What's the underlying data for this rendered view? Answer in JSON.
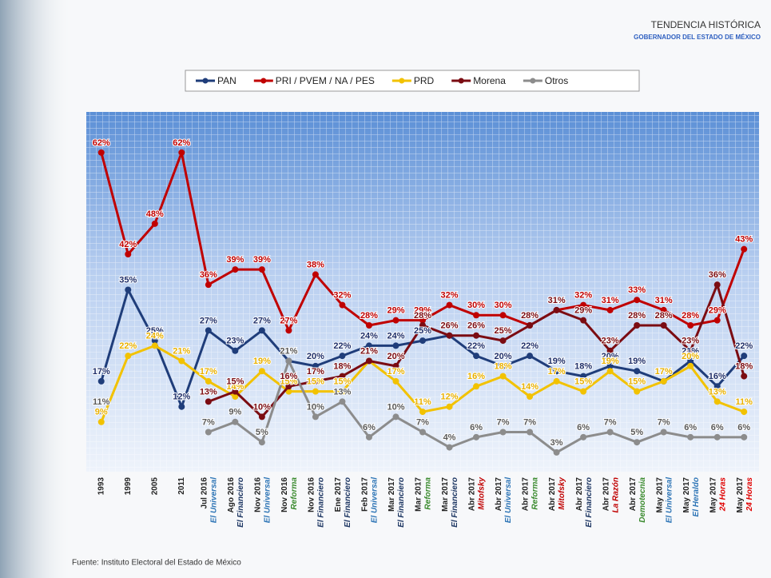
{
  "chart_data": {
    "type": "line",
    "title": "TENDENCIA HISTÓRICA",
    "subtitle": "GOBERNADOR DEL ESTADO DE MÉXICO",
    "source_note": "Fuente: Instituto Electoral del Estado de México",
    "categories": [
      "1993",
      "1999",
      "2005",
      "2011",
      "Jul 2016",
      "Ago 2016",
      "Nov 2016",
      "Nov 2016",
      "Nov 2016",
      "Ene 2017",
      "Feb 2017",
      "Mar 2017",
      "Mar 2017",
      "Mar 2017",
      "Abr 2017",
      "Abr 2017",
      "Abr 2017",
      "Abr 2017",
      "Abr 2017",
      "Abr 2017",
      "Abr 2017",
      "May 2017",
      "May 2017",
      "May 2017",
      "May 2017"
    ],
    "sources": [
      null,
      null,
      null,
      null,
      "El Universal",
      "El Financiero",
      "El Universal",
      "Reforma",
      "El Financiero",
      "El Financiero",
      "El Universal",
      "El Financiero",
      "Reforma",
      "El Financiero",
      "Mitofsky",
      "El Universal",
      "Reforma",
      "Mitofsky",
      "El Financiero",
      "La Razón",
      "Demotecnia",
      "El Universal",
      "El Heraldo",
      "24 Horas",
      "24 Horas"
    ],
    "source_colors": [
      null,
      null,
      null,
      null,
      "#2e75b6",
      "#1f3864",
      "#2e75b6",
      "#3a8a2e",
      "#1f3864",
      "#1f3864",
      "#2e75b6",
      "#1f3864",
      "#3a8a2e",
      "#1f3864",
      "#c00000",
      "#2e75b6",
      "#3a8a2e",
      "#c00000",
      "#1f3864",
      "#c00000",
      "#3a8a2e",
      "#2e75b6",
      "#2e75b6",
      "#e00000",
      "#e00000"
    ],
    "ylim": [
      0,
      70
    ],
    "series": [
      {
        "name": "PAN",
        "color": "#1f3d7a",
        "label_color": "#1f2f6a",
        "values": [
          17,
          35,
          25,
          12,
          27,
          23,
          27,
          21,
          20,
          22,
          24,
          24,
          25,
          26,
          22,
          20,
          22,
          19,
          18,
          20,
          19,
          17,
          21,
          16,
          22
        ],
        "value_labels": [
          "17%",
          "35%",
          "25%",
          "12%",
          "27%",
          "23%",
          "27%",
          "21%",
          "20%",
          "22%",
          "24%",
          "24%",
          "25%",
          "26%",
          "22%",
          "20%",
          "22%",
          "19%",
          "18%",
          "20%",
          "19%",
          "17%",
          "21%",
          "16%",
          "22%"
        ]
      },
      {
        "name": "PRI / PVEM / NA / PES",
        "color": "#c00000",
        "label_color": "#c00000",
        "values": [
          62,
          42,
          48,
          62,
          36,
          39,
          39,
          27,
          38,
          32,
          28,
          29,
          29,
          32,
          30,
          30,
          28,
          31,
          32,
          31,
          33,
          31,
          28,
          29,
          43
        ],
        "value_labels": [
          "62%",
          "42%",
          "48%",
          "62%",
          "36%",
          "39%",
          "39%",
          "27%",
          "38%",
          "32%",
          "28%",
          "29%",
          "29%",
          "32%",
          "30%",
          "30%",
          "28%",
          "31%",
          "32%",
          "31%",
          "33%",
          "31%",
          "28%",
          "29%",
          "43%"
        ]
      },
      {
        "name": "PRD",
        "color": "#f2c200",
        "label_color": "#e8b000",
        "values": [
          9,
          22,
          24,
          21,
          17,
          14,
          19,
          15,
          15,
          15,
          21,
          17,
          11,
          12,
          16,
          18,
          14,
          17,
          15,
          19,
          15,
          17,
          20,
          13,
          11
        ],
        "value_labels": [
          "9%",
          "22%",
          "24%",
          "21%",
          "17%",
          "14%",
          "19%",
          "15%",
          "15%",
          "15%",
          "21%",
          "17%",
          "11%",
          "12%",
          "16%",
          "18%",
          "14%",
          "17%",
          "15%",
          "19%",
          "15%",
          "17%",
          "20%",
          "13%",
          "11%"
        ]
      },
      {
        "name": "Morena",
        "color": "#7b0c12",
        "label_color": "#7b0c12",
        "values": [
          null,
          null,
          null,
          null,
          13,
          15,
          10,
          16,
          17,
          18,
          21,
          20,
          28,
          26,
          26,
          25,
          28,
          31,
          29,
          23,
          28,
          28,
          23,
          36,
          18
        ],
        "value_labels": [
          null,
          null,
          null,
          null,
          "13%",
          "15%",
          "10%",
          "16%",
          "17%",
          "18%",
          "21%",
          "20%",
          "28%",
          "26%",
          "26%",
          "25%",
          "28%",
          "31%",
          "29%",
          "23%",
          "28%",
          "28%",
          "23%",
          "36%",
          "18%"
        ]
      },
      {
        "name": "Otros",
        "color": "#8c8c8c",
        "label_color": "#595959",
        "values": [
          11,
          null,
          null,
          null,
          7,
          9,
          5,
          21,
          10,
          13,
          6,
          10,
          7,
          4,
          6,
          7,
          7,
          3,
          6,
          7,
          5,
          7,
          6,
          6,
          6
        ],
        "value_labels": [
          "11%",
          null,
          null,
          null,
          "7%",
          "9%",
          "5%",
          "21%",
          "10%",
          "13%",
          "6%",
          "10%",
          "7%",
          "4%",
          "6%",
          "7%",
          "7%",
          "3%",
          "6%",
          "7%",
          "5%",
          "7%",
          "6%",
          "6%",
          "6%"
        ]
      }
    ]
  }
}
